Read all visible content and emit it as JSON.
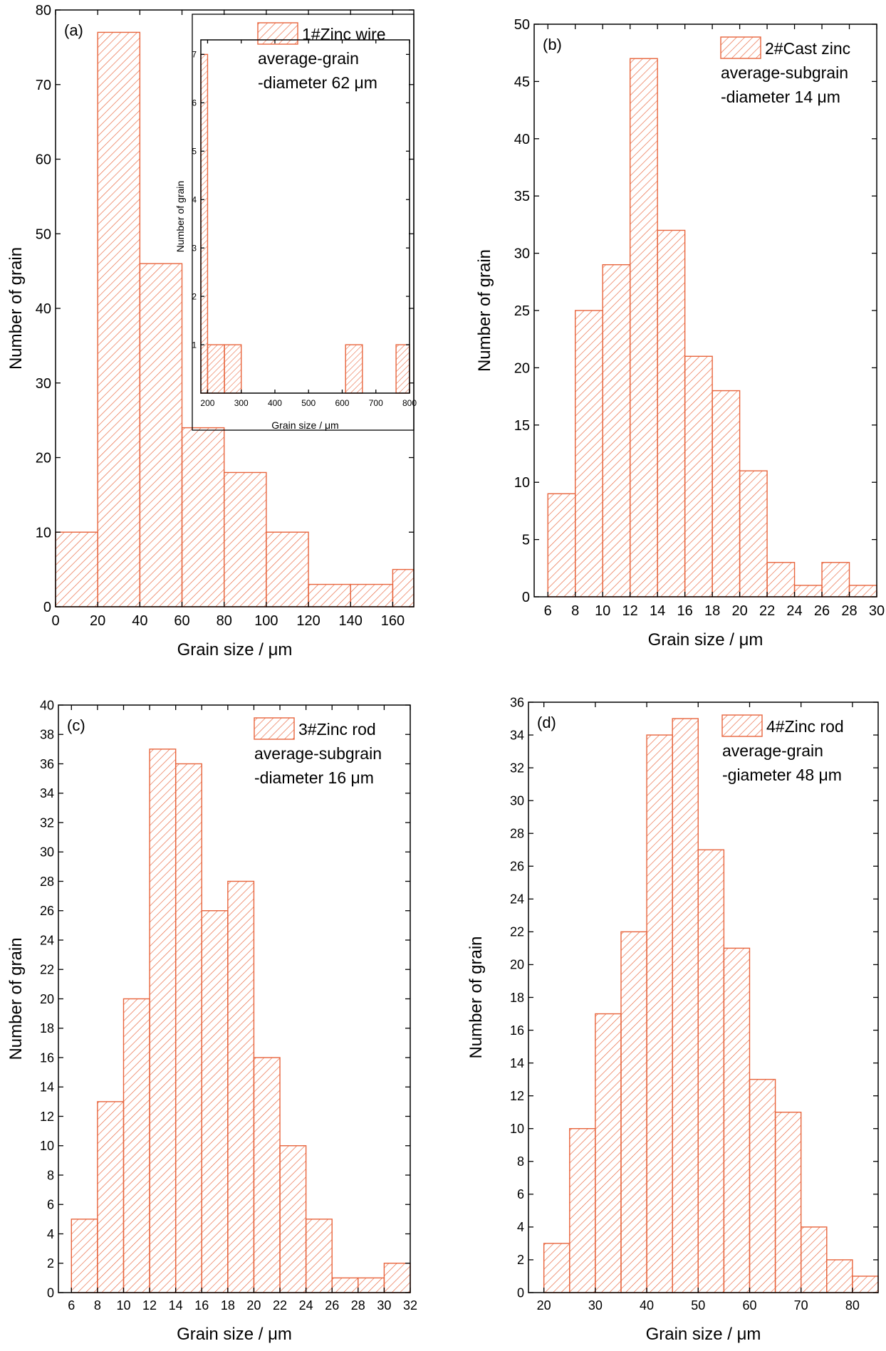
{
  "theme": {
    "bar_color": "#E8643C",
    "axis_color": "#000000"
  },
  "chart_data": [
    {
      "panel": "(a)",
      "type": "bar",
      "bins": [
        0,
        20,
        40,
        60,
        80,
        100,
        120,
        140,
        160
      ],
      "bin_width": 20,
      "values": [
        10,
        77,
        46,
        24,
        18,
        10,
        3,
        3,
        5
      ],
      "xlabel": "Grain size / μm",
      "ylabel": "Number of grain",
      "xlim": [
        0,
        170
      ],
      "ylim": [
        0,
        80
      ],
      "xticks": [
        "0",
        "20",
        "40",
        "60",
        "80",
        "100",
        "120",
        "140",
        "160"
      ],
      "yticks": [
        "0",
        "10",
        "20",
        "30",
        "40",
        "50",
        "60",
        "70",
        "80"
      ],
      "legend": {
        "label": "1#Zinc wire",
        "lines": [
          "average-grain",
          "-diameter 62 μm"
        ],
        "placement": "top-right"
      },
      "inset": {
        "bins": [
          175,
          200,
          250,
          610,
          760
        ],
        "bin_widths": [
          25,
          50,
          50,
          50,
          50
        ],
        "values": [
          7,
          1,
          1,
          1,
          1
        ],
        "xlabel": "Grain size / μm",
        "ylabel": "Number of grain",
        "xlim": [
          180,
          800
        ],
        "ylim": [
          0,
          7.3
        ],
        "xticks": [
          "200",
          "300",
          "400",
          "500",
          "600",
          "700",
          "800"
        ],
        "yticks": [
          "1",
          "2",
          "3",
          "4",
          "5",
          "6",
          "7"
        ]
      }
    },
    {
      "panel": "(b)",
      "type": "bar",
      "bins": [
        6,
        8,
        10,
        12,
        14,
        16,
        18,
        20,
        22,
        24,
        26,
        28
      ],
      "bin_width": 2,
      "values": [
        9,
        25,
        29,
        47,
        32,
        21,
        18,
        11,
        3,
        1,
        3,
        1
      ],
      "xlabel": "Grain size / μm",
      "ylabel": "Number of grain",
      "xlim": [
        5,
        30
      ],
      "ylim": [
        0,
        50
      ],
      "xticks": [
        "6",
        "8",
        "10",
        "12",
        "14",
        "16",
        "18",
        "20",
        "22",
        "24",
        "26",
        "28",
        "30"
      ],
      "yticks": [
        "0",
        "5",
        "10",
        "15",
        "20",
        "25",
        "30",
        "35",
        "40",
        "45",
        "50"
      ],
      "legend": {
        "label": "2#Cast zinc",
        "lines": [
          "average-subgrain",
          "-diameter 14 μm"
        ],
        "placement": "top-right"
      }
    },
    {
      "panel": "(c)",
      "type": "bar",
      "bins": [
        6,
        8,
        10,
        12,
        14,
        16,
        18,
        20,
        22,
        24,
        26,
        28,
        30
      ],
      "bin_width": 2,
      "values": [
        5,
        13,
        20,
        37,
        36,
        26,
        28,
        16,
        10,
        5,
        1,
        1,
        2
      ],
      "xlabel": "Grain size / μm",
      "ylabel": "Number of grain",
      "xlim": [
        5,
        32
      ],
      "ylim": [
        0,
        40
      ],
      "xticks": [
        "6",
        "8",
        "10",
        "12",
        "14",
        "16",
        "18",
        "20",
        "22",
        "24",
        "26",
        "28",
        "30",
        "32"
      ],
      "yticks": [
        "0",
        "2",
        "4",
        "6",
        "8",
        "10",
        "12",
        "14",
        "16",
        "18",
        "20",
        "22",
        "24",
        "26",
        "28",
        "30",
        "32",
        "34",
        "36",
        "38",
        "40"
      ],
      "legend": {
        "label": "3#Zinc rod",
        "lines": [
          "average-subgrain",
          "-diameter 16 μm"
        ],
        "placement": "top-right"
      }
    },
    {
      "panel": "(d)",
      "type": "bar",
      "bins": [
        20,
        25,
        30,
        35,
        40,
        45,
        50,
        55,
        60,
        65,
        70,
        75,
        80
      ],
      "bin_width": 5,
      "values": [
        3,
        10,
        17,
        22,
        34,
        35,
        27,
        21,
        13,
        11,
        4,
        2,
        1
      ],
      "xlabel": "Grain size / μm",
      "ylabel": "Number of grain",
      "xlim": [
        17,
        85
      ],
      "ylim": [
        0,
        36
      ],
      "xticks": [
        "20",
        "30",
        "40",
        "50",
        "60",
        "70",
        "80"
      ],
      "yticks": [
        "0",
        "2",
        "4",
        "6",
        "8",
        "10",
        "12",
        "14",
        "16",
        "18",
        "20",
        "22",
        "24",
        "26",
        "28",
        "30",
        "32",
        "34",
        "36"
      ],
      "legend": {
        "label": "4#Zinc rod",
        "lines": [
          "average-grain",
          "-giameter 48 μm"
        ],
        "placement": "top-right"
      }
    }
  ]
}
